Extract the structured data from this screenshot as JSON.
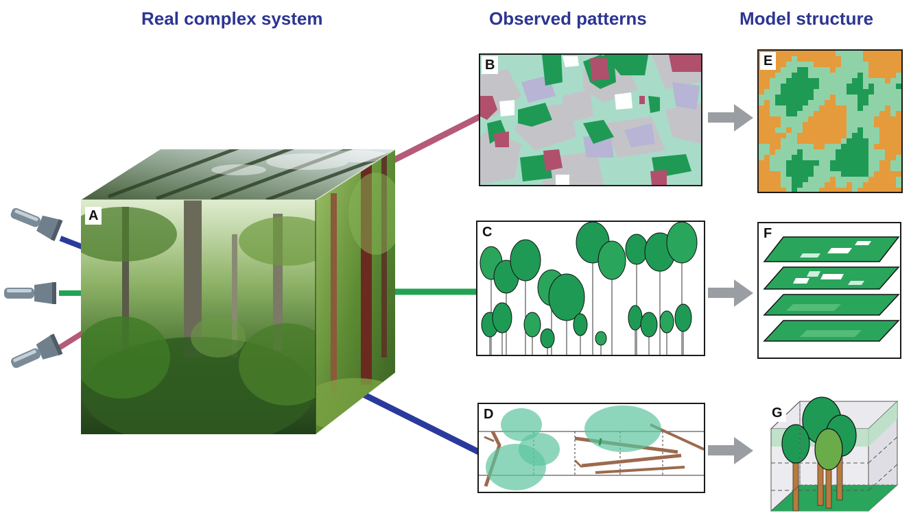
{
  "titles": {
    "real": "Real complex system",
    "observed": "Observed patterns",
    "model": "Model structure"
  },
  "panels": {
    "A": "A",
    "B": "B",
    "C": "C",
    "D": "D",
    "E": "E",
    "F": "F",
    "G": "G"
  },
  "colors": {
    "title_blue": "#2d3591",
    "link_pink": "#b55a78",
    "link_green": "#22a354",
    "link_blue": "#2a3a9c",
    "arrow_gray": "#9a9ea3",
    "patch_green": "#1e9a55",
    "patch_light": "#a8dcc8",
    "patch_gray": "#c4c4c8",
    "patch_lavender": "#b8b4d6",
    "patch_pink": "#b0506c",
    "model_orange": "#e59a3c",
    "model_lightgreen": "#90d2a8"
  },
  "icons": [
    "flashlight-icon",
    "flashlight-icon",
    "flashlight-icon",
    "arrow-right-icon",
    "arrow-right-icon",
    "arrow-right-icon"
  ]
}
